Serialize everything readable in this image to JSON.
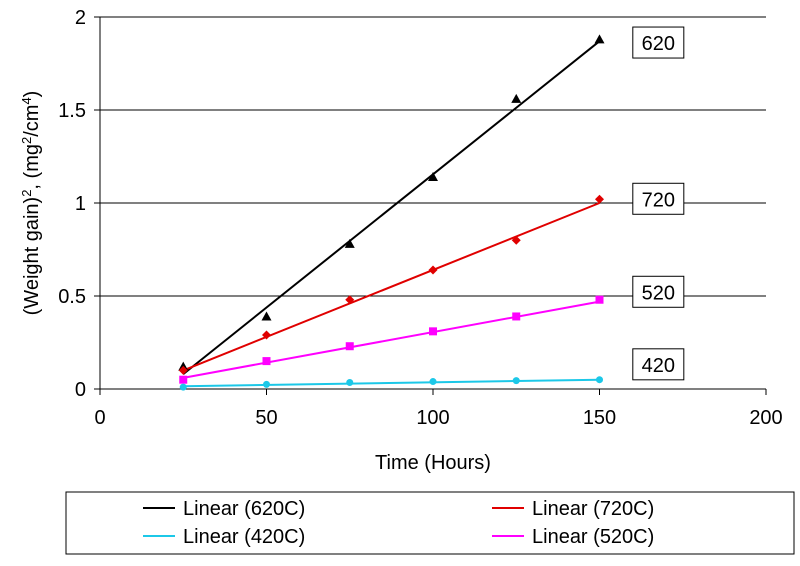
{
  "chart_data": {
    "type": "scatter",
    "xlabel": "Time (Hours)",
    "ylabel": {
      "parts": [
        "(Weight gain)",
        "2",
        ", (mg",
        "2",
        "/cm",
        "4",
        ")"
      ],
      "superscripts": [
        false,
        true,
        false,
        true,
        false,
        true,
        false
      ]
    },
    "xlim": [
      0,
      200
    ],
    "ylim": [
      0,
      2
    ],
    "x_ticks": [
      "0",
      "50",
      "100",
      "150",
      "200"
    ],
    "y_ticks": [
      "0",
      "0.5",
      "1",
      "1.5",
      "2"
    ],
    "grid": "horizontal major gridlines",
    "legend_placement": "bottom",
    "series": [
      {
        "name": "620",
        "marker": "triangle",
        "color": "#000000",
        "points": [
          [
            25,
            0.12
          ],
          [
            50,
            0.39
          ],
          [
            75,
            0.78
          ],
          [
            100,
            1.14
          ],
          [
            125,
            1.56
          ],
          [
            150,
            1.88
          ]
        ],
        "fit": {
          "name": "Linear (620C)",
          "x": [
            25,
            150
          ],
          "y": [
            0.08,
            1.87
          ]
        },
        "label": "620",
        "label_anchor": [
          157,
          1.86
        ]
      },
      {
        "name": "720",
        "marker": "diamond",
        "color": "#e00000",
        "points": [
          [
            25,
            0.1
          ],
          [
            50,
            0.29
          ],
          [
            75,
            0.48
          ],
          [
            100,
            0.64
          ],
          [
            125,
            0.8
          ],
          [
            150,
            1.02
          ]
        ],
        "fit": {
          "name": "Linear (720C)",
          "x": [
            25,
            150
          ],
          "y": [
            0.1,
            1.0
          ]
        },
        "label": "720",
        "label_anchor": [
          157,
          1.02
        ]
      },
      {
        "name": "520",
        "marker": "square",
        "color": "#ff00ff",
        "points": [
          [
            25,
            0.05
          ],
          [
            50,
            0.15
          ],
          [
            75,
            0.23
          ],
          [
            100,
            0.31
          ],
          [
            125,
            0.39
          ],
          [
            150,
            0.48
          ]
        ],
        "fit": {
          "name": "Linear (520C)",
          "x": [
            25,
            150
          ],
          "y": [
            0.06,
            0.47
          ]
        },
        "label": "520",
        "label_anchor": [
          157,
          0.52
        ]
      },
      {
        "name": "420",
        "marker": "circle",
        "color": "#1cc8e8",
        "points": [
          [
            25,
            0.01
          ],
          [
            50,
            0.025
          ],
          [
            75,
            0.035
          ],
          [
            100,
            0.04
          ],
          [
            125,
            0.045
          ],
          [
            150,
            0.05
          ]
        ],
        "fit": {
          "name": "Linear (420C)",
          "x": [
            25,
            150
          ],
          "y": [
            0.015,
            0.05
          ]
        },
        "label": "420",
        "label_anchor": [
          157,
          0.13
        ]
      }
    ],
    "legend": [
      {
        "label": "Linear (620C)",
        "color": "#000000"
      },
      {
        "label": "Linear (720C)",
        "color": "#e00000"
      },
      {
        "label": "Linear (420C)",
        "color": "#1cc8e8"
      },
      {
        "label": "Linear (520C)",
        "color": "#ff00ff"
      }
    ]
  }
}
